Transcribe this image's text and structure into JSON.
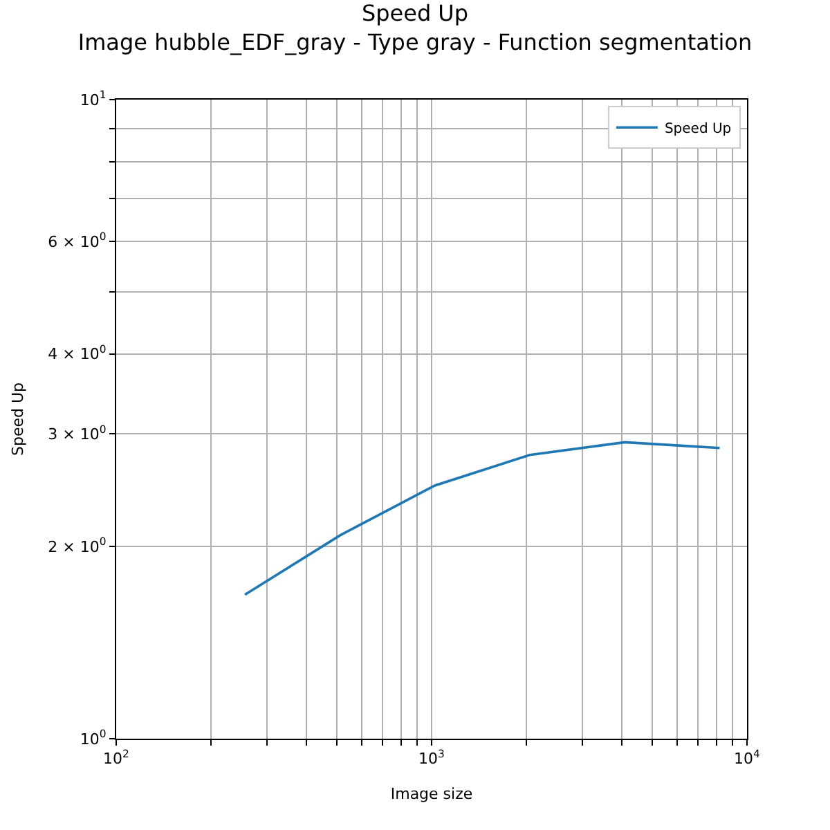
{
  "chart_data": {
    "type": "line",
    "title": "Speed Up",
    "subtitle": "Image hubble_EDF_gray - Type gray - Function segmentation",
    "xlabel": "Image size",
    "ylabel": "Speed Up",
    "x": [
      256,
      512,
      1024,
      2048,
      4096,
      8192
    ],
    "series": [
      {
        "name": "Speed Up",
        "color": "#1f77b4",
        "values": [
          1.68,
          2.08,
          2.49,
          2.78,
          2.91,
          2.85
        ]
      }
    ],
    "log": "xy",
    "xlim": [
      100,
      10000
    ],
    "ylim": [
      1,
      10
    ],
    "xticks": [
      {
        "value": 100,
        "label": "10$^{2}$"
      },
      {
        "value": 200,
        "label": null
      },
      {
        "value": 300,
        "label": null
      },
      {
        "value": 400,
        "label": null
      },
      {
        "value": 500,
        "label": null
      },
      {
        "value": 600,
        "label": null
      },
      {
        "value": 700,
        "label": null
      },
      {
        "value": 800,
        "label": null
      },
      {
        "value": 900,
        "label": null
      },
      {
        "value": 1000,
        "label": "10$^{3}$"
      },
      {
        "value": 2000,
        "label": null
      },
      {
        "value": 3000,
        "label": null
      },
      {
        "value": 4000,
        "label": null
      },
      {
        "value": 5000,
        "label": null
      },
      {
        "value": 6000,
        "label": null
      },
      {
        "value": 7000,
        "label": null
      },
      {
        "value": 8000,
        "label": null
      },
      {
        "value": 9000,
        "label": null
      },
      {
        "value": 10000,
        "label": "10$^{4}$"
      }
    ],
    "yticks": [
      {
        "value": 1,
        "label": "10$^{0}$"
      },
      {
        "value": 2,
        "label": "2 × 10$^{0}$"
      },
      {
        "value": 3,
        "label": "3 × 10$^{0}$"
      },
      {
        "value": 4,
        "label": "4 × 10$^{0}$"
      },
      {
        "value": 5,
        "label": null
      },
      {
        "value": 6,
        "label": "6 × 10$^{0}$"
      },
      {
        "value": 7,
        "label": null
      },
      {
        "value": 8,
        "label": null
      },
      {
        "value": 9,
        "label": null
      },
      {
        "value": 10,
        "label": "10$^{1}$"
      }
    ],
    "grid": true,
    "legend": "top right",
    "marker": "none",
    "line_style": "solid"
  }
}
